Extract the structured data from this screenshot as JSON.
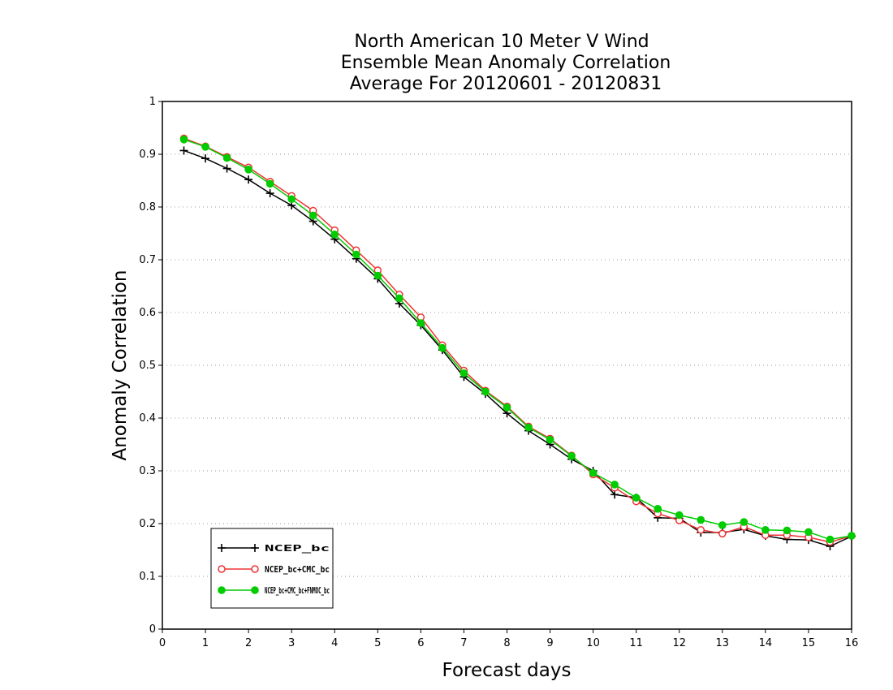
{
  "chart_data": {
    "type": "line",
    "title": [
      "North American 10 Meter V Wind",
      "Ensemble Mean Anomaly Correlation",
      "Average For 20120601 - 20120831"
    ],
    "xlabel": "Forecast days",
    "ylabel": "Anomaly Correlation",
    "xlim": [
      0,
      16
    ],
    "ylim": [
      0,
      1
    ],
    "xticks": [
      "0",
      "1",
      "2",
      "3",
      "4",
      "5",
      "6",
      "7",
      "8",
      "9",
      "10",
      "11",
      "12",
      "13",
      "14",
      "15",
      "16"
    ],
    "yticks": [
      "0",
      "0.1",
      "0.2",
      "0.3",
      "0.4",
      "0.5",
      "0.6",
      "0.7",
      "0.8",
      "0.9",
      "1"
    ],
    "grid": "horizontal dotted",
    "legend_position": "bottom-left",
    "x": [
      0.5,
      1,
      1.5,
      2,
      2.5,
      3,
      3.5,
      4,
      4.5,
      5,
      5.5,
      6,
      6.5,
      7,
      7.5,
      8,
      8.5,
      9,
      9.5,
      10,
      10.5,
      11,
      11.5,
      12,
      12.5,
      13,
      13.5,
      14,
      14.5,
      15,
      15.5,
      16
    ],
    "series": [
      {
        "name": "NCEP_bc",
        "color": "#000000",
        "marker": "plus",
        "values": [
          0.907,
          0.892,
          0.873,
          0.852,
          0.826,
          0.803,
          0.773,
          0.739,
          0.702,
          0.664,
          0.617,
          0.576,
          0.529,
          0.478,
          0.446,
          0.409,
          0.376,
          0.35,
          0.322,
          0.3,
          0.255,
          0.249,
          0.211,
          0.21,
          0.183,
          0.183,
          0.189,
          0.177,
          0.17,
          0.169,
          0.157,
          0.176
        ]
      },
      {
        "name": "NCEP_bc+CMC_bc",
        "color": "#ee3333",
        "marker": "open-circle",
        "values": [
          0.93,
          0.915,
          0.895,
          0.875,
          0.848,
          0.821,
          0.793,
          0.756,
          0.718,
          0.68,
          0.634,
          0.591,
          0.538,
          0.49,
          0.452,
          0.422,
          0.384,
          0.361,
          0.329,
          0.293,
          0.268,
          0.242,
          0.219,
          0.206,
          0.188,
          0.181,
          0.194,
          0.178,
          0.178,
          0.174,
          0.165,
          0.177
        ]
      },
      {
        "name": "NCEP_bc+CMC_bc+FNMOC_bc",
        "color": "#00cc00",
        "marker": "filled-circle",
        "values": [
          0.928,
          0.914,
          0.893,
          0.871,
          0.844,
          0.815,
          0.784,
          0.748,
          0.71,
          0.67,
          0.627,
          0.58,
          0.533,
          0.485,
          0.45,
          0.42,
          0.382,
          0.359,
          0.328,
          0.296,
          0.274,
          0.249,
          0.228,
          0.216,
          0.207,
          0.197,
          0.203,
          0.188,
          0.187,
          0.184,
          0.17,
          0.177
        ]
      }
    ]
  }
}
